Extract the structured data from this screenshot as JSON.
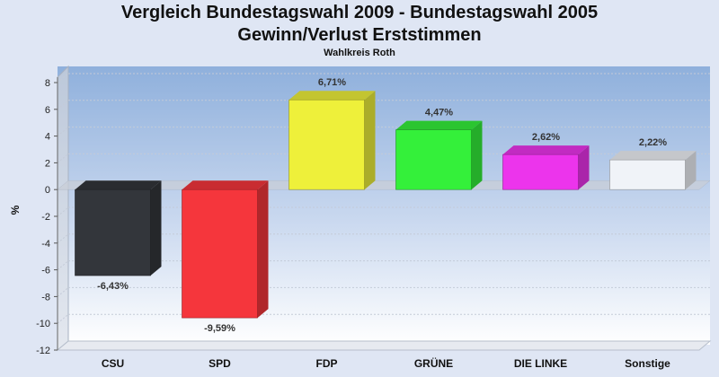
{
  "chart_data": {
    "type": "bar",
    "title": "Vergleich Bundestagswahl 2009 - Bundestagswahl 2005",
    "subtitle": "Gewinn/Verlust Erststimmen",
    "caption": "Wahlkreis Roth",
    "ylabel": "%",
    "xlabel": "",
    "ylim": [
      -12,
      8
    ],
    "yticks": [
      8,
      6,
      4,
      2,
      0,
      -2,
      -4,
      -6,
      -8,
      -10,
      -12
    ],
    "grid": true,
    "categories": [
      "CSU",
      "SPD",
      "FDP",
      "GRÜNE",
      "DIE LINKE",
      "Sonstige"
    ],
    "values": [
      -6.43,
      -9.59,
      6.71,
      4.47,
      2.62,
      2.22
    ],
    "value_labels": [
      "-6,43%",
      "-9,59%",
      "6,71%",
      "4,47%",
      "2,62%",
      "2,22%"
    ],
    "colors": [
      "#33363b",
      "#f5363c",
      "#eef03a",
      "#34f03a",
      "#ec34ec",
      "#f0f3f8"
    ]
  }
}
